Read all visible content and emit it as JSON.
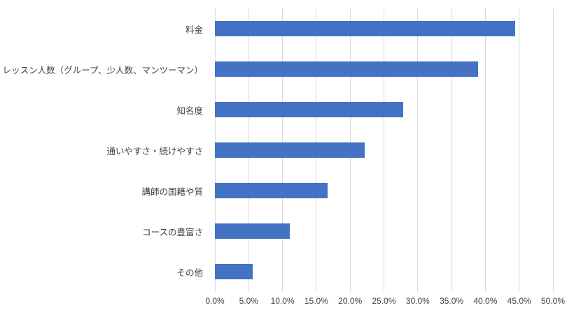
{
  "chart_data": {
    "type": "bar",
    "orientation": "horizontal",
    "title": "",
    "xlabel": "",
    "ylabel": "",
    "categories": [
      "料金",
      "レッスン人数（グループ、少人数、マンツーマン）",
      "知名度",
      "通いやすさ・続けやすさ",
      "講師の国籍や質",
      "コースの豊富さ",
      "その他"
    ],
    "values": [
      44.4,
      38.9,
      27.8,
      22.2,
      16.7,
      11.1,
      5.6
    ],
    "value_suffix": "%",
    "xlim": [
      0,
      50
    ],
    "ticks": [
      0,
      5,
      10,
      15,
      20,
      25,
      30,
      35,
      40,
      45,
      50
    ],
    "tick_labels": [
      "0.0%",
      "5.0%",
      "10.0%",
      "15.0%",
      "20.0%",
      "25.0%",
      "30.0%",
      "35.0%",
      "40.0%",
      "45.0%",
      "50.0%"
    ],
    "bar_color": "#4472C4",
    "gridline_color": "#D9D9D9",
    "grid": true,
    "legend": false
  }
}
